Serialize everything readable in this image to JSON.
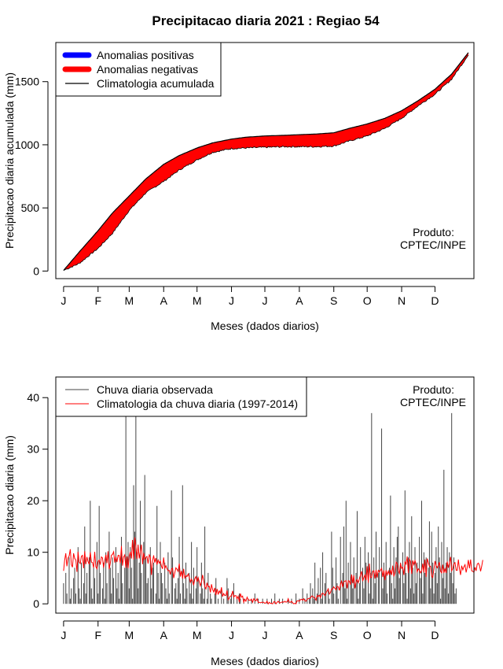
{
  "title": "Precipitacao diaria 2021 : Regiao 54",
  "colors": {
    "positive": "#0000ff",
    "negative": "#ff0000",
    "black": "#000000",
    "observed_bar": "#444444",
    "climatology_line": "#ff0000"
  },
  "chart_data": [
    {
      "type": "area",
      "title": "Precipitacao diaria 2021 : Regiao 54",
      "xlabel": "Meses (dados diarios)",
      "ylabel": "Precipitacao diaria acumulada (mm)",
      "x_months": [
        "J",
        "F",
        "M",
        "A",
        "M",
        "J",
        "J",
        "A",
        "S",
        "O",
        "N",
        "D"
      ],
      "xlim": [
        -6,
        370
      ],
      "ylim": [
        -60,
        1810
      ],
      "yticks": [
        0,
        500,
        1000,
        1500
      ],
      "note": [
        "Produto:",
        "CPTEC/INPE"
      ],
      "legend": [
        "Anomalias positivas",
        "Anomalias negativas",
        "Climatologia acumulada"
      ],
      "legend_position": "top-left",
      "climatology_cumulative": {
        "day": [
          1,
          15,
          32,
          45,
          60,
          75,
          91,
          105,
          121,
          135,
          152,
          165,
          182,
          200,
          213,
          228,
          244,
          258,
          274,
          290,
          305,
          320,
          335,
          350,
          365
        ],
        "value": [
          5,
          150,
          320,
          460,
          595,
          730,
          845,
          915,
          975,
          1015,
          1045,
          1060,
          1070,
          1075,
          1080,
          1085,
          1095,
          1130,
          1165,
          1210,
          1270,
          1350,
          1440,
          1560,
          1730
        ]
      },
      "observed_cumulative": {
        "day": [
          1,
          15,
          32,
          45,
          60,
          75,
          91,
          105,
          121,
          135,
          152,
          165,
          182,
          200,
          213,
          228,
          244,
          258,
          274,
          290,
          305,
          320,
          335,
          350,
          365
        ],
        "value": [
          5,
          60,
          180,
          300,
          480,
          620,
          710,
          800,
          880,
          940,
          970,
          975,
          980,
          985,
          985,
          985,
          990,
          1030,
          1070,
          1130,
          1210,
          1310,
          1400,
          1520,
          1710
        ]
      }
    },
    {
      "type": "bar",
      "xlabel": "Meses (dados diarios)",
      "ylabel": "Precipitacao diaria (mm)",
      "x_months": [
        "J",
        "F",
        "M",
        "A",
        "M",
        "J",
        "J",
        "A",
        "S",
        "O",
        "N",
        "D"
      ],
      "xlim": [
        -6,
        370
      ],
      "ylim": [
        -1.8,
        44
      ],
      "yticks": [
        0,
        10,
        20,
        30,
        40
      ],
      "note": [
        "Produto:",
        "CPTEC/INPE"
      ],
      "legend": [
        "Chuva diaria observada",
        "Climatologia da chuva diaria (1997-2014)"
      ],
      "legend_position": "top-left",
      "observed_daily_mm": [
        4,
        0,
        6,
        2,
        0,
        9,
        1,
        3,
        0,
        5,
        7,
        2,
        0,
        11,
        3,
        1,
        8,
        0,
        4,
        15,
        2,
        6,
        0,
        9,
        20,
        3,
        1,
        7,
        5,
        0,
        12,
        2,
        19,
        6,
        0,
        3,
        8,
        1,
        10,
        4,
        0,
        14,
        7,
        2,
        9,
        5,
        0,
        11,
        3,
        6,
        1,
        8,
        13,
        4,
        0,
        7,
        38,
        9,
        12,
        3,
        11,
        7,
        1,
        23,
        14,
        37,
        10,
        3,
        8,
        20,
        6,
        0,
        12,
        25,
        9,
        4,
        5,
        0,
        11,
        3,
        7,
        8,
        0,
        2,
        19,
        6,
        1,
        12,
        6,
        4,
        0,
        8,
        3,
        1,
        10,
        2,
        0,
        22,
        9,
        0,
        3,
        4,
        1,
        5,
        13,
        2,
        0,
        23,
        4,
        1,
        8,
        3,
        0,
        6,
        2,
        12,
        1,
        7,
        0,
        3,
        11,
        5,
        0,
        2,
        8,
        3,
        1,
        15,
        0,
        1,
        6,
        0,
        2,
        1,
        0,
        0,
        2,
        5,
        0,
        1,
        0,
        0,
        3,
        0,
        1,
        0,
        0,
        5,
        3,
        0,
        1,
        2,
        0,
        4,
        0,
        0,
        1,
        0,
        2,
        1,
        0,
        0,
        1,
        0,
        0,
        0,
        1,
        0,
        0,
        1,
        0,
        0,
        2,
        0,
        0,
        1,
        0,
        0,
        0,
        1,
        0,
        0,
        0,
        1,
        0,
        0,
        0,
        1,
        0,
        0,
        2,
        0,
        0,
        0,
        1,
        0,
        0,
        1,
        0,
        0,
        0,
        0,
        1,
        0,
        0,
        1,
        0,
        0,
        0,
        2,
        0,
        0,
        1,
        0,
        0,
        3,
        0,
        1,
        0,
        2,
        0,
        1,
        4,
        0,
        3,
        1,
        8,
        0,
        2,
        5,
        0,
        7,
        1,
        10,
        0,
        4,
        6,
        0,
        3,
        1,
        0,
        14,
        7,
        2,
        0,
        9,
        4,
        1,
        0,
        13,
        0,
        6,
        15,
        3,
        20,
        1,
        8,
        0,
        12,
        5,
        3,
        9,
        0,
        6,
        18,
        1,
        4,
        11,
        0,
        7,
        3,
        13,
        8,
        0,
        10,
        2,
        6,
        37,
        1,
        9,
        4,
        14,
        0,
        6,
        11,
        0,
        34,
        3,
        8,
        5,
        12,
        2,
        0,
        7,
        21,
        4,
        1,
        11,
        3,
        9,
        13,
        15,
        5,
        8,
        0,
        10,
        4,
        22,
        6,
        1,
        9,
        12,
        3,
        17,
        7,
        2,
        11,
        4,
        8,
        0,
        13,
        5,
        20,
        2,
        10,
        6,
        9,
        0,
        7,
        16,
        3,
        14,
        8,
        2,
        6,
        11,
        4,
        15,
        9,
        1,
        12,
        5,
        26,
        3,
        8,
        11,
        2,
        10,
        6,
        37,
        4,
        9,
        2,
        3
      ],
      "climatology_daily_mm": [
        6.4,
        8.5,
        9.8,
        7.3,
        8.9,
        9.3,
        10.6,
        7.6,
        7.1,
        9.8,
        8.8,
        8.5,
        6.2,
        10.1,
        8.1,
        7.8,
        9.2,
        9.4,
        6.9,
        10.2,
        7.7,
        9.1,
        8.2,
        7.7,
        10.0,
        8.1,
        8.0,
        7.0,
        10.1,
        7.2,
        6.8,
        8.2,
        8.5,
        7.6,
        9.1,
        8.9,
        7.0,
        8.4,
        9.5,
        7.9,
        10.2,
        6.7,
        7.8,
        9.4,
        9.6,
        10.1,
        8.0,
        9.2,
        8.1,
        9.4,
        9.4,
        7.9,
        11.2,
        7.4,
        9.1,
        9.5,
        7.0,
        9.2,
        6.9,
        9.3,
        10.1,
        8.8,
        12.4,
        8.6,
        12.9,
        11.2,
        8.7,
        11.5,
        8.8,
        10.1,
        11.5,
        7.7,
        9.9,
        8.6,
        9.0,
        9.2,
        7.8,
        9.5,
        9.1,
        5.6,
        8.3,
        9.4,
        8.0,
        8.9,
        7.6,
        8.5,
        7.9,
        8.3,
        7.3,
        6.8,
        9.0,
        6.9,
        7.4,
        6.8,
        6.4,
        6.5,
        5.7,
        6.7,
        6.9,
        5.0,
        6.0,
        7.0,
        6.7,
        6.3,
        7.8,
        5.3,
        6.4,
        4.9,
        6.8,
        5.0,
        5.5,
        5.3,
        5.8,
        5.2,
        4.2,
        4.8,
        4.4,
        3.6,
        4.9,
        5.3,
        4.3,
        5.1,
        4.3,
        3.5,
        4.3,
        5.6,
        4.5,
        3.3,
        2.9,
        4.1,
        3.3,
        3.4,
        2.2,
        3.8,
        2.8,
        2.3,
        3.1,
        1.7,
        2.9,
        1.8,
        2.5,
        2.1,
        3.2,
        1.4,
        2.0,
        1.6,
        1.7,
        2.6,
        0.8,
        1.1,
        1.5,
        1.6,
        2.5,
        1.3,
        1.6,
        1.6,
        1.0,
        1.5,
        0.3,
        2.0,
        1.3,
        1.5,
        0.3,
        0.9,
        0.5,
        1.3,
        0.8,
        0.7,
        0.7,
        0.9,
        0.3,
        1.0,
        0.7,
        0.6,
        1.0,
        0.3,
        0.3,
        0.2,
        0.3,
        0.3,
        0.3,
        0.1,
        0.2,
        0.5,
        0.0,
        0.3,
        0.1,
        0.1,
        0.0,
        0.4,
        0.4,
        0.0,
        0.3,
        0.5,
        0.2,
        0.2,
        0.3,
        0.4,
        0.3,
        0.5,
        0.3,
        0.4,
        1.0,
        0.3,
        0.3,
        0.5,
        0.2,
        0.0,
        0.1,
        0.0,
        0.6,
        0.6,
        0.5,
        0.8,
        0.9,
        0.7,
        1.0,
        0.6,
        0.5,
        0.9,
        1.0,
        1.1,
        1.1,
        1.5,
        1.5,
        1.2,
        1.1,
        0.7,
        1.6,
        1.4,
        1.7,
        1.2,
        1.9,
        2.1,
        1.9,
        1.6,
        2.1,
        2.5,
        2.9,
        1.9,
        2.2,
        2.9,
        2.9,
        3.3,
        3.0,
        2.7,
        3.4,
        3.3,
        2.6,
        3.8,
        4.4,
        3.2,
        4.3,
        4.4,
        4.5,
        3.0,
        4.5,
        4.4,
        3.7,
        5.7,
        4.0,
        5.5,
        3.0,
        4.2,
        4.7,
        4.1,
        4.9,
        5.6,
        6.3,
        4.4,
        5.1,
        5.6,
        4.6,
        7.3,
        4.1,
        7.8,
        5.1,
        5.1,
        6.3,
        6.4,
        4.9,
        6.6,
        5.1,
        6.5,
        6.2,
        6.5,
        6.9,
        5.2,
        6.5,
        4.6,
        6.5,
        5.6,
        6.4,
        5.6,
        6.6,
        5.6,
        7.4,
        5.3,
        6.0,
        8.1,
        7.8,
        6.4,
        5.9,
        7.9,
        6.9,
        7.1,
        5.6,
        8.2,
        7.7,
        9.2,
        6.0,
        8.7,
        8.2,
        5.8,
        8.4,
        7.6,
        8.4,
        7.7,
        6.2,
        6.8,
        6.5,
        6.0,
        6.4,
        7.8,
        6.1,
        8.6,
        5.2,
        8.8,
        8.0,
        7.3,
        7.3,
        5.4,
        5.1,
        6.7,
        8.3,
        7.4,
        7.0,
        7.5,
        8.1,
        6.3,
        6.0,
        7.6,
        6.0,
        6.8,
        6.0,
        8.2,
        7.0,
        8.0,
        9.1,
        6.4,
        6.8,
        7.8,
        8.0,
        6.5,
        6.5,
        8.6,
        6.8,
        5.6,
        7.4,
        6.6,
        7.2,
        7.6,
        6.1,
        7.1,
        8.5,
        6.9,
        8.6,
        6.4,
        6.3,
        6.1,
        7.1,
        6.4,
        7.7,
        7.9,
        7.4,
        6.3,
        7.3,
        8.5
      ]
    }
  ]
}
